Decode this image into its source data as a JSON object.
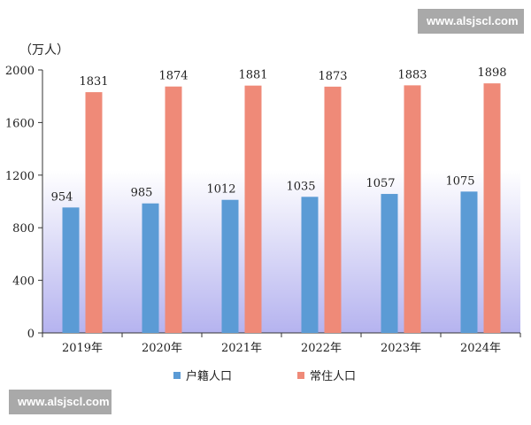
{
  "watermark_top": "www.alsjscl.com",
  "watermark_bottom": "www.alsjscl.com",
  "chart_data": {
    "type": "bar",
    "unit": "（万人）",
    "categories": [
      "2019年",
      "2020年",
      "2021年",
      "2022年",
      "2023年",
      "2024年"
    ],
    "series": [
      {
        "name": "户籍人口",
        "color": "#5b9bd5",
        "values": [
          954,
          985,
          1012,
          1035,
          1057,
          1075
        ]
      },
      {
        "name": "常住人口",
        "color": "#ef8a78",
        "values": [
          1831,
          1874,
          1881,
          1873,
          1883,
          1898
        ]
      }
    ],
    "ylim": [
      0,
      2000
    ],
    "yticks": [
      0,
      400,
      800,
      1200,
      1600,
      2000
    ],
    "legend_position": "bottom",
    "grid": false
  }
}
